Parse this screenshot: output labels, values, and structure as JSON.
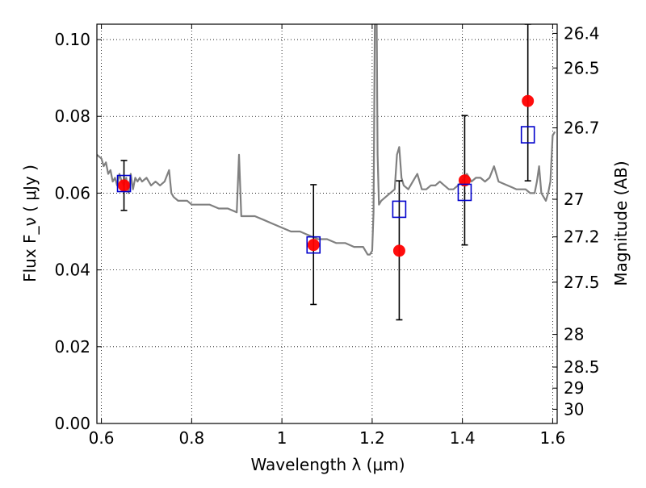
{
  "chart_data": {
    "type": "scatter",
    "xlabel": "Wavelength  λ (μm)",
    "ylabel": "Flux  F_ν  ( μJy )",
    "y2label": "Magnitude (AB)",
    "xlim": [
      0.59,
      1.61
    ],
    "ylim": [
      0.0,
      0.104
    ],
    "grid": true,
    "x_ticks": [
      0.6,
      0.8,
      1.0,
      1.2,
      1.4,
      1.6
    ],
    "x_tick_labels": [
      "0.6",
      "0.8",
      "1",
      "1.2",
      "1.4",
      "1.6"
    ],
    "y_ticks": [
      0.0,
      0.02,
      0.04,
      0.06,
      0.08,
      0.1
    ],
    "y_tick_labels": [
      "0.00",
      "0.02",
      "0.04",
      "0.06",
      "0.08",
      "0.10"
    ],
    "y2_ticks": [
      {
        "label": "26.4",
        "flux": 0.1016
      },
      {
        "label": "26.5",
        "flux": 0.0926
      },
      {
        "label": "26.7",
        "flux": 0.077
      },
      {
        "label": "27",
        "flux": 0.0584
      },
      {
        "label": "27.2",
        "flux": 0.0486
      },
      {
        "label": "27.5",
        "flux": 0.0368
      },
      {
        "label": "28",
        "flux": 0.0232
      },
      {
        "label": "28.5",
        "flux": 0.0147
      },
      {
        "label": "29",
        "flux": 0.0092
      },
      {
        "label": "30",
        "flux": 0.0037
      }
    ],
    "series": [
      {
        "kind": "line",
        "color": "#808080",
        "x": [
          0.59,
          0.6,
          0.605,
          0.61,
          0.615,
          0.62,
          0.625,
          0.63,
          0.635,
          0.64,
          0.645,
          0.65,
          0.655,
          0.66,
          0.665,
          0.67,
          0.675,
          0.68,
          0.685,
          0.69,
          0.7,
          0.71,
          0.72,
          0.73,
          0.74,
          0.75,
          0.755,
          0.76,
          0.77,
          0.78,
          0.79,
          0.8,
          0.82,
          0.84,
          0.86,
          0.88,
          0.9,
          0.905,
          0.91,
          0.92,
          0.94,
          0.96,
          0.98,
          1.0,
          1.02,
          1.04,
          1.06,
          1.08,
          1.1,
          1.12,
          1.14,
          1.16,
          1.17,
          1.18,
          1.185,
          1.19,
          1.195,
          1.2,
          1.203,
          1.206,
          1.21,
          1.212,
          1.215,
          1.22,
          1.23,
          1.24,
          1.25,
          1.255,
          1.26,
          1.265,
          1.27,
          1.28,
          1.29,
          1.3,
          1.31,
          1.32,
          1.33,
          1.34,
          1.35,
          1.36,
          1.37,
          1.38,
          1.39,
          1.4,
          1.41,
          1.42,
          1.43,
          1.44,
          1.45,
          1.46,
          1.47,
          1.48,
          1.5,
          1.52,
          1.54,
          1.55,
          1.56,
          1.565,
          1.57,
          1.575,
          1.58,
          1.585,
          1.59,
          1.595,
          1.6,
          1.605
        ],
        "y": [
          0.07,
          0.069,
          0.067,
          0.068,
          0.065,
          0.066,
          0.063,
          0.064,
          0.062,
          0.065,
          0.063,
          0.062,
          0.064,
          0.06,
          0.065,
          0.061,
          0.064,
          0.063,
          0.064,
          0.063,
          0.064,
          0.062,
          0.063,
          0.062,
          0.063,
          0.066,
          0.06,
          0.059,
          0.058,
          0.058,
          0.058,
          0.057,
          0.057,
          0.057,
          0.056,
          0.056,
          0.055,
          0.07,
          0.054,
          0.054,
          0.054,
          0.053,
          0.052,
          0.051,
          0.05,
          0.05,
          0.049,
          0.048,
          0.048,
          0.047,
          0.047,
          0.046,
          0.046,
          0.046,
          0.045,
          0.044,
          0.044,
          0.045,
          0.055,
          0.104,
          0.104,
          0.07,
          0.057,
          0.058,
          0.059,
          0.06,
          0.061,
          0.07,
          0.072,
          0.064,
          0.062,
          0.061,
          0.063,
          0.065,
          0.061,
          0.061,
          0.062,
          0.062,
          0.063,
          0.062,
          0.061,
          0.061,
          0.062,
          0.063,
          0.065,
          0.063,
          0.064,
          0.064,
          0.063,
          0.064,
          0.067,
          0.063,
          0.062,
          0.061,
          0.061,
          0.06,
          0.06,
          0.063,
          0.067,
          0.06,
          0.059,
          0.058,
          0.06,
          0.063,
          0.075,
          0.076
        ]
      },
      {
        "kind": "points",
        "marker": "circle",
        "color": "#ff0000",
        "points": [
          {
            "x": 0.65,
            "y": 0.062,
            "ylow": 0.0555,
            "yhigh": 0.0685
          },
          {
            "x": 1.07,
            "y": 0.0465,
            "ylow": 0.031,
            "yhigh": 0.0622
          },
          {
            "x": 1.26,
            "y": 0.045,
            "ylow": 0.027,
            "yhigh": 0.0632
          },
          {
            "x": 1.405,
            "y": 0.0633,
            "ylow": 0.0465,
            "yhigh": 0.0802
          },
          {
            "x": 1.545,
            "y": 0.084,
            "ylow": 0.0632,
            "yhigh": 0.104
          }
        ]
      },
      {
        "kind": "points",
        "marker": "square",
        "color": "#0000cc",
        "points": [
          {
            "x": 0.65,
            "y": 0.0625
          },
          {
            "x": 1.07,
            "y": 0.0465
          },
          {
            "x": 1.26,
            "y": 0.0558
          },
          {
            "x": 1.405,
            "y": 0.0602
          },
          {
            "x": 1.545,
            "y": 0.0752
          }
        ]
      }
    ]
  }
}
